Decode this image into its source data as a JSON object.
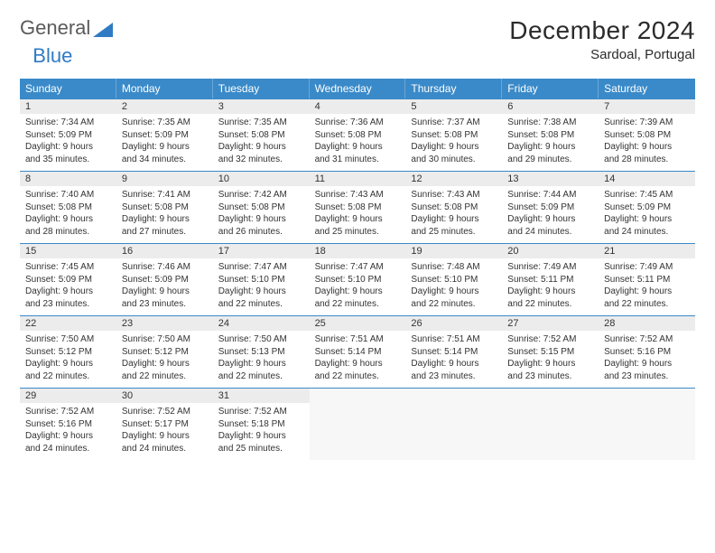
{
  "logo": {
    "word1": "General",
    "word2": "Blue"
  },
  "title": "December 2024",
  "location": "Sardoal, Portugal",
  "colors": {
    "header_bg": "#3a8ac9",
    "header_border": "#6aa7d6",
    "daynum_bg": "#ececec",
    "row_border": "#3a8ac9",
    "text": "#333333",
    "logo_gray": "#5a5a5a",
    "logo_blue": "#2f7bc4"
  },
  "weekdays": [
    "Sunday",
    "Monday",
    "Tuesday",
    "Wednesday",
    "Thursday",
    "Friday",
    "Saturday"
  ],
  "weeks": [
    [
      {
        "n": "1",
        "sr": "Sunrise: 7:34 AM",
        "ss": "Sunset: 5:09 PM",
        "d1": "Daylight: 9 hours",
        "d2": "and 35 minutes."
      },
      {
        "n": "2",
        "sr": "Sunrise: 7:35 AM",
        "ss": "Sunset: 5:09 PM",
        "d1": "Daylight: 9 hours",
        "d2": "and 34 minutes."
      },
      {
        "n": "3",
        "sr": "Sunrise: 7:35 AM",
        "ss": "Sunset: 5:08 PM",
        "d1": "Daylight: 9 hours",
        "d2": "and 32 minutes."
      },
      {
        "n": "4",
        "sr": "Sunrise: 7:36 AM",
        "ss": "Sunset: 5:08 PM",
        "d1": "Daylight: 9 hours",
        "d2": "and 31 minutes."
      },
      {
        "n": "5",
        "sr": "Sunrise: 7:37 AM",
        "ss": "Sunset: 5:08 PM",
        "d1": "Daylight: 9 hours",
        "d2": "and 30 minutes."
      },
      {
        "n": "6",
        "sr": "Sunrise: 7:38 AM",
        "ss": "Sunset: 5:08 PM",
        "d1": "Daylight: 9 hours",
        "d2": "and 29 minutes."
      },
      {
        "n": "7",
        "sr": "Sunrise: 7:39 AM",
        "ss": "Sunset: 5:08 PM",
        "d1": "Daylight: 9 hours",
        "d2": "and 28 minutes."
      }
    ],
    [
      {
        "n": "8",
        "sr": "Sunrise: 7:40 AM",
        "ss": "Sunset: 5:08 PM",
        "d1": "Daylight: 9 hours",
        "d2": "and 28 minutes."
      },
      {
        "n": "9",
        "sr": "Sunrise: 7:41 AM",
        "ss": "Sunset: 5:08 PM",
        "d1": "Daylight: 9 hours",
        "d2": "and 27 minutes."
      },
      {
        "n": "10",
        "sr": "Sunrise: 7:42 AM",
        "ss": "Sunset: 5:08 PM",
        "d1": "Daylight: 9 hours",
        "d2": "and 26 minutes."
      },
      {
        "n": "11",
        "sr": "Sunrise: 7:43 AM",
        "ss": "Sunset: 5:08 PM",
        "d1": "Daylight: 9 hours",
        "d2": "and 25 minutes."
      },
      {
        "n": "12",
        "sr": "Sunrise: 7:43 AM",
        "ss": "Sunset: 5:08 PM",
        "d1": "Daylight: 9 hours",
        "d2": "and 25 minutes."
      },
      {
        "n": "13",
        "sr": "Sunrise: 7:44 AM",
        "ss": "Sunset: 5:09 PM",
        "d1": "Daylight: 9 hours",
        "d2": "and 24 minutes."
      },
      {
        "n": "14",
        "sr": "Sunrise: 7:45 AM",
        "ss": "Sunset: 5:09 PM",
        "d1": "Daylight: 9 hours",
        "d2": "and 24 minutes."
      }
    ],
    [
      {
        "n": "15",
        "sr": "Sunrise: 7:45 AM",
        "ss": "Sunset: 5:09 PM",
        "d1": "Daylight: 9 hours",
        "d2": "and 23 minutes."
      },
      {
        "n": "16",
        "sr": "Sunrise: 7:46 AM",
        "ss": "Sunset: 5:09 PM",
        "d1": "Daylight: 9 hours",
        "d2": "and 23 minutes."
      },
      {
        "n": "17",
        "sr": "Sunrise: 7:47 AM",
        "ss": "Sunset: 5:10 PM",
        "d1": "Daylight: 9 hours",
        "d2": "and 22 minutes."
      },
      {
        "n": "18",
        "sr": "Sunrise: 7:47 AM",
        "ss": "Sunset: 5:10 PM",
        "d1": "Daylight: 9 hours",
        "d2": "and 22 minutes."
      },
      {
        "n": "19",
        "sr": "Sunrise: 7:48 AM",
        "ss": "Sunset: 5:10 PM",
        "d1": "Daylight: 9 hours",
        "d2": "and 22 minutes."
      },
      {
        "n": "20",
        "sr": "Sunrise: 7:49 AM",
        "ss": "Sunset: 5:11 PM",
        "d1": "Daylight: 9 hours",
        "d2": "and 22 minutes."
      },
      {
        "n": "21",
        "sr": "Sunrise: 7:49 AM",
        "ss": "Sunset: 5:11 PM",
        "d1": "Daylight: 9 hours",
        "d2": "and 22 minutes."
      }
    ],
    [
      {
        "n": "22",
        "sr": "Sunrise: 7:50 AM",
        "ss": "Sunset: 5:12 PM",
        "d1": "Daylight: 9 hours",
        "d2": "and 22 minutes."
      },
      {
        "n": "23",
        "sr": "Sunrise: 7:50 AM",
        "ss": "Sunset: 5:12 PM",
        "d1": "Daylight: 9 hours",
        "d2": "and 22 minutes."
      },
      {
        "n": "24",
        "sr": "Sunrise: 7:50 AM",
        "ss": "Sunset: 5:13 PM",
        "d1": "Daylight: 9 hours",
        "d2": "and 22 minutes."
      },
      {
        "n": "25",
        "sr": "Sunrise: 7:51 AM",
        "ss": "Sunset: 5:14 PM",
        "d1": "Daylight: 9 hours",
        "d2": "and 22 minutes."
      },
      {
        "n": "26",
        "sr": "Sunrise: 7:51 AM",
        "ss": "Sunset: 5:14 PM",
        "d1": "Daylight: 9 hours",
        "d2": "and 23 minutes."
      },
      {
        "n": "27",
        "sr": "Sunrise: 7:52 AM",
        "ss": "Sunset: 5:15 PM",
        "d1": "Daylight: 9 hours",
        "d2": "and 23 minutes."
      },
      {
        "n": "28",
        "sr": "Sunrise: 7:52 AM",
        "ss": "Sunset: 5:16 PM",
        "d1": "Daylight: 9 hours",
        "d2": "and 23 minutes."
      }
    ],
    [
      {
        "n": "29",
        "sr": "Sunrise: 7:52 AM",
        "ss": "Sunset: 5:16 PM",
        "d1": "Daylight: 9 hours",
        "d2": "and 24 minutes."
      },
      {
        "n": "30",
        "sr": "Sunrise: 7:52 AM",
        "ss": "Sunset: 5:17 PM",
        "d1": "Daylight: 9 hours",
        "d2": "and 24 minutes."
      },
      {
        "n": "31",
        "sr": "Sunrise: 7:52 AM",
        "ss": "Sunset: 5:18 PM",
        "d1": "Daylight: 9 hours",
        "d2": "and 25 minutes."
      },
      {
        "empty": true
      },
      {
        "empty": true
      },
      {
        "empty": true
      },
      {
        "empty": true
      }
    ]
  ]
}
